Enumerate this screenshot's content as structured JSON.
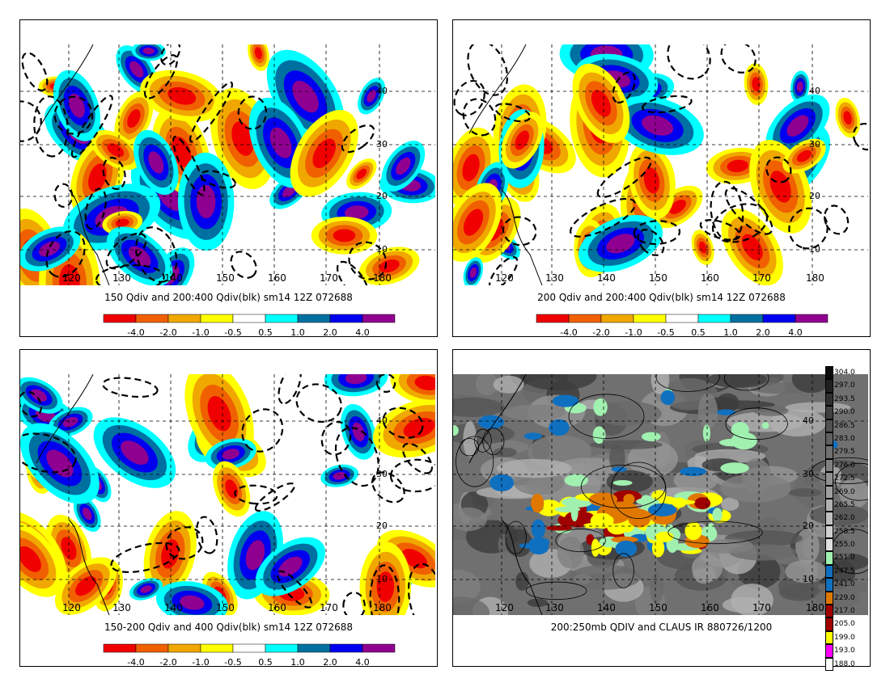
{
  "panels": [
    {
      "caption": "150 Qdiv and 200:400 Qdiv(blk) sm14 12Z 072688",
      "colorbar": "qdiv"
    },
    {
      "caption": "200 Qdiv and 200:400 Qdiv(blk) sm14 12Z 072688",
      "colorbar": "qdiv"
    },
    {
      "caption": "150-200 Qdiv and 400 Qdiv(blk) sm14 12Z 072688",
      "colorbar": "qdiv"
    },
    {
      "caption": "200:250mb QDIV and CLAUS IR 880726/1200",
      "colorbar": "ir"
    }
  ],
  "lon_labels": [
    "120",
    "130",
    "140",
    "150",
    "160",
    "170",
    "180"
  ],
  "lat_labels": [
    "10",
    "20",
    "30",
    "40"
  ],
  "qdiv_colorbar": {
    "labels": [
      "-4.0",
      "-2.0",
      "-1.0",
      "-0.5",
      "0.5",
      "1.0",
      "2.0",
      "4.0"
    ],
    "colors": [
      "#f00000",
      "#f06000",
      "#f0a800",
      "#ffff00",
      "#ffffff",
      "#00ffff",
      "#0070a0",
      "#0000f0",
      "#900090"
    ]
  },
  "ir_colorbar": {
    "labels": [
      "304.0",
      "297.0",
      "293.5",
      "290.0",
      "286.5",
      "283.0",
      "279.5",
      "276.0",
      "272.5",
      "269.0",
      "265.5",
      "262.0",
      "258.5",
      "255.0",
      "251.0",
      "247.5",
      "241.0",
      "229.0",
      "217.0",
      "205.0",
      "199.0",
      "193.0",
      "188.0"
    ],
    "colors": [
      "#0a0a0a",
      "#202020",
      "#303030",
      "#404040",
      "#505050",
      "#606060",
      "#707070",
      "#808080",
      "#909090",
      "#a0a0a0",
      "#b0b0b0",
      "#c0c0c0",
      "#d0d0d0",
      "#e0e0e0",
      "#a0f0b0",
      "#1070c0",
      "#1070c0",
      "#e07800",
      "#a00000",
      "#a00000",
      "#ffff00",
      "#ff00ff",
      "#ffffff"
    ]
  }
}
